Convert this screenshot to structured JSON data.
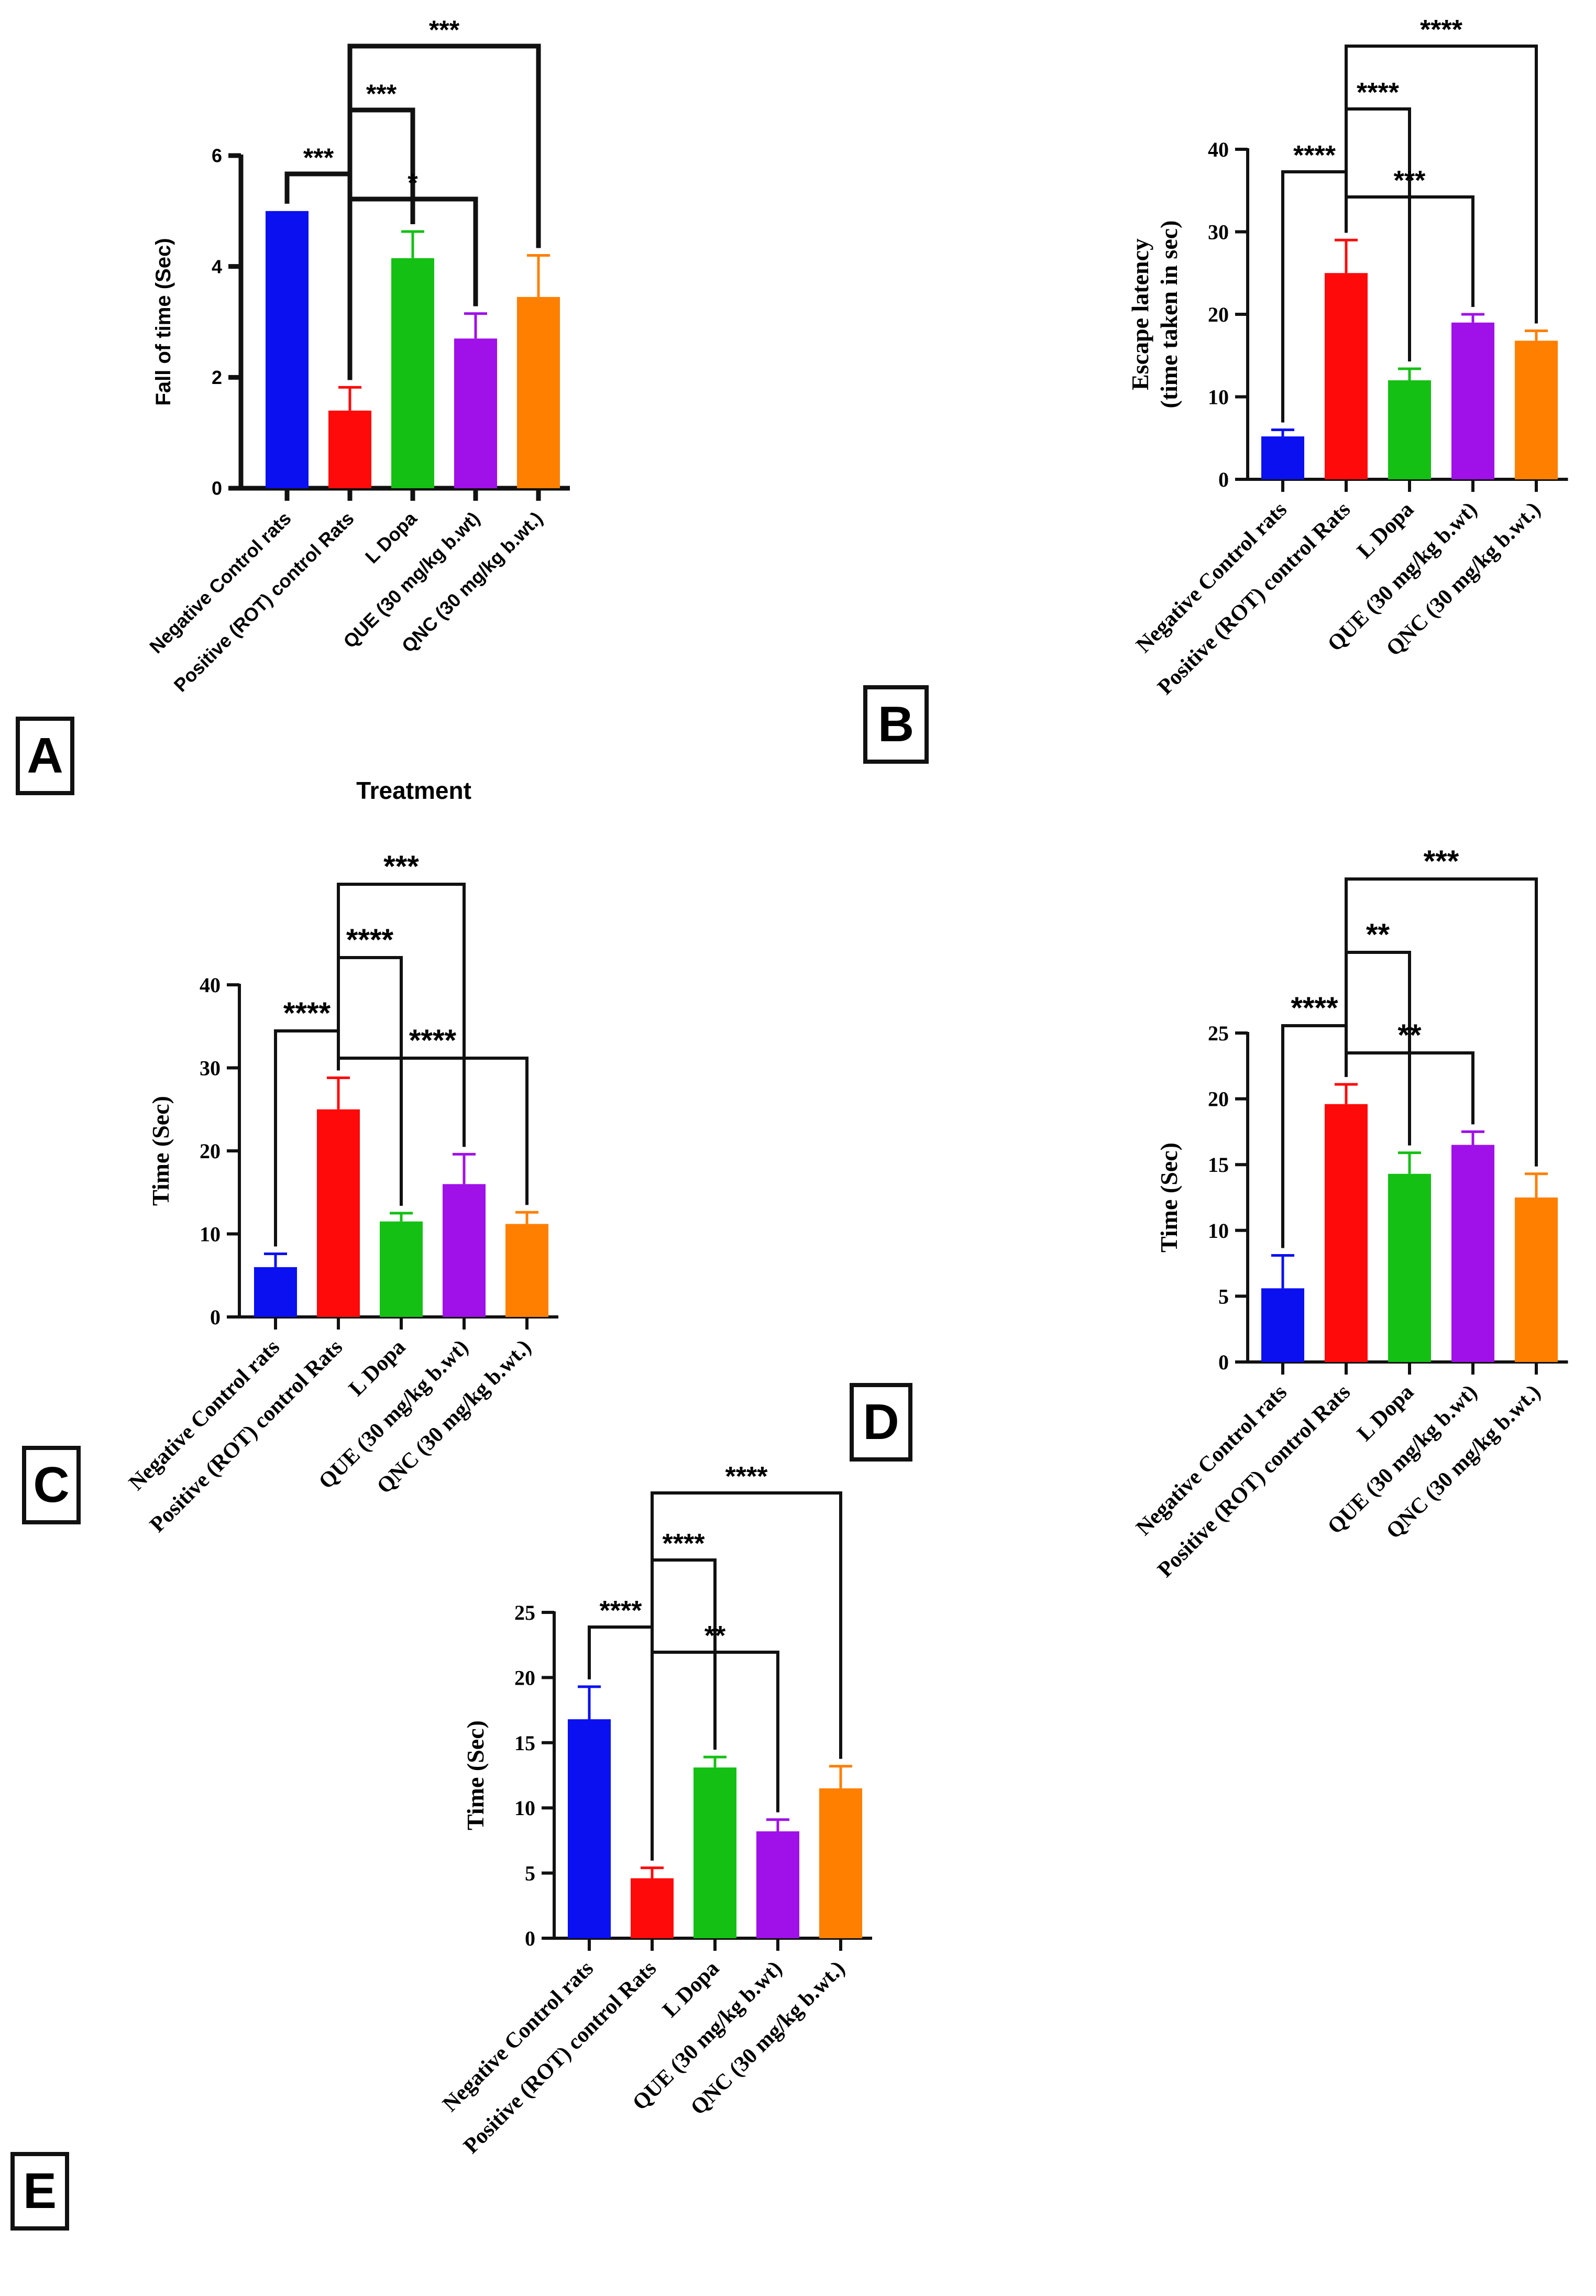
{
  "colors": [
    "#0a10f0",
    "#ff0a0a",
    "#14c014",
    "#a010e8",
    "#ff7f00"
  ],
  "panels": [
    "A",
    "B",
    "C",
    "D",
    "E"
  ],
  "chart_data": [
    {
      "id": "A",
      "type": "bar",
      "categories": [
        "Negative Control rats",
        "Positive (ROT) control Rats",
        "L Dopa",
        "QUE (30 mg/kg b.wt)",
        "QNC (30 mg/kg b.wt.)"
      ],
      "values": [
        5.0,
        1.4,
        4.15,
        2.7,
        3.45
      ],
      "errors": [
        0.0,
        0.42,
        0.48,
        0.45,
        0.75
      ],
      "ylabel": "Fall of time (Sec)",
      "xlabel": "Treatment",
      "ylim": [
        0,
        6
      ],
      "yticks": [
        0,
        2,
        4,
        6
      ],
      "significance": [
        {
          "from": 1,
          "to": 4,
          "label": "***"
        },
        {
          "from": 1,
          "to": 2,
          "label": "***"
        },
        {
          "from": 0,
          "to": 1,
          "label": "***"
        },
        {
          "from": 1,
          "to": 3,
          "label": "*"
        }
      ]
    },
    {
      "id": "B",
      "type": "bar",
      "categories": [
        "Negative Control rats",
        "Positive (ROT) control Rats",
        "L Dopa",
        "QUE (30 mg/kg b.wt)",
        "QNC (30 mg/kg b.wt.)"
      ],
      "values": [
        5.2,
        25.0,
        12.0,
        19.0,
        16.8
      ],
      "errors": [
        0.8,
        4.0,
        1.4,
        1.0,
        1.2
      ],
      "ylabel": "Escape latency",
      "ylabel2": "(time taken in sec)",
      "xlabel": "",
      "ylim": [
        0,
        40
      ],
      "yticks": [
        0,
        10,
        20,
        30,
        40
      ],
      "significance": [
        {
          "from": 1,
          "to": 4,
          "label": "****"
        },
        {
          "from": 1,
          "to": 2,
          "label": "****"
        },
        {
          "from": 0,
          "to": 1,
          "label": "****"
        },
        {
          "from": 1,
          "to": 3,
          "label": "***"
        }
      ]
    },
    {
      "id": "C",
      "type": "bar",
      "categories": [
        "Negative Control rats",
        "Positive (ROT) control Rats",
        "L Dopa",
        "QUE (30 mg/kg b.wt)",
        "QNC (30 mg/kg b.wt.)"
      ],
      "values": [
        6.0,
        25.0,
        11.5,
        16.0,
        11.2
      ],
      "errors": [
        1.6,
        3.8,
        1.0,
        3.6,
        1.4
      ],
      "ylabel": "Time (Sec)",
      "xlabel": "",
      "ylim": [
        0,
        40
      ],
      "yticks": [
        0,
        10,
        20,
        30,
        40
      ],
      "significance": [
        {
          "from": 1,
          "to": 3,
          "label": "***"
        },
        {
          "from": 1,
          "to": 2,
          "label": "****"
        },
        {
          "from": 0,
          "to": 1,
          "label": "****"
        },
        {
          "from": 1,
          "to": 4,
          "label": "****"
        }
      ]
    },
    {
      "id": "D",
      "type": "bar",
      "categories": [
        "Negative Control rats",
        "Positive (ROT) control Rats",
        "L Dopa",
        "QUE (30 mg/kg b.wt)",
        "QNC (30 mg/kg b.wt.)"
      ],
      "values": [
        5.6,
        19.6,
        14.3,
        16.5,
        12.5
      ],
      "errors": [
        2.5,
        1.5,
        1.6,
        1.0,
        1.8
      ],
      "ylabel": "Time (Sec)",
      "xlabel": "",
      "ylim": [
        0,
        25
      ],
      "yticks": [
        0,
        5,
        10,
        15,
        20,
        25
      ],
      "significance": [
        {
          "from": 1,
          "to": 4,
          "label": "***"
        },
        {
          "from": 1,
          "to": 2,
          "label": "**"
        },
        {
          "from": 0,
          "to": 1,
          "label": "****"
        },
        {
          "from": 1,
          "to": 3,
          "label": "**"
        }
      ]
    },
    {
      "id": "E",
      "type": "bar",
      "categories": [
        "Negative Control rats",
        "Positive (ROT) control Rats",
        "L Dopa",
        "QUE (30 mg/kg b.wt)",
        "QNC (30 mg/kg b.wt.)"
      ],
      "values": [
        16.8,
        4.6,
        13.1,
        8.2,
        11.5
      ],
      "errors": [
        2.5,
        0.8,
        0.8,
        0.9,
        1.7
      ],
      "ylabel": "Time (Sec)",
      "xlabel": "",
      "ylim": [
        0,
        25
      ],
      "yticks": [
        0,
        5,
        10,
        15,
        20,
        25
      ],
      "significance": [
        {
          "from": 1,
          "to": 4,
          "label": "****"
        },
        {
          "from": 1,
          "to": 2,
          "label": "****"
        },
        {
          "from": 0,
          "to": 1,
          "label": "****"
        },
        {
          "from": 1,
          "to": 3,
          "label": "**"
        }
      ]
    }
  ]
}
